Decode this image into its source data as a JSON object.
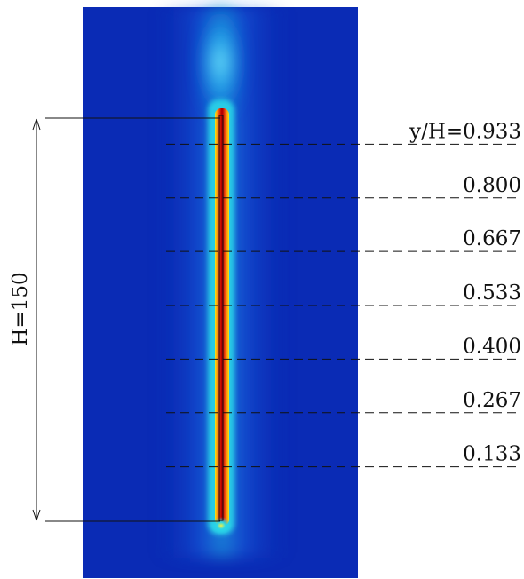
{
  "height_label": "H=150",
  "levels": [
    {
      "text": "y/H=0.933",
      "value": 0.933
    },
    {
      "text": "0.800",
      "value": 0.8
    },
    {
      "text": "0.667",
      "value": 0.667
    },
    {
      "text": "0.533",
      "value": 0.533
    },
    {
      "text": "0.400",
      "value": 0.4
    },
    {
      "text": "0.267",
      "value": 0.267
    },
    {
      "text": "0.133",
      "value": 0.133
    }
  ],
  "colors": {
    "background": "#0a2bb5",
    "field_low": "#1c5cf0",
    "field_mid": "#2ad7e8",
    "field_high": "#f1e514",
    "core": "#c80a0a",
    "line": "#111111"
  }
}
